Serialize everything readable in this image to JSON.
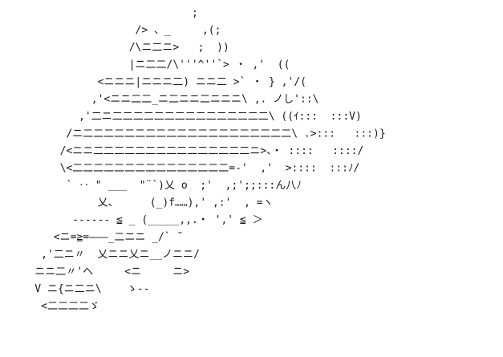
{
  "artwork": {
    "kind": "ascii-art",
    "lines": [
      "                             ;",
      "                    /> 、_     ,(;",
      "                   /\\ニ二ニ>   ;  ))",
      "                   |ニ二二/\\'''^''`> ・ ,'  ((",
      "              <ニニニ|ニニニ二) ニニ二 >` ・ } ,'/(",
      "             ,'<ニニ二二_ニ二ニニ二ニニニ\\ ,. ノし'::\\",
      "           ,'二ニ二二二二二二二二二二二二二二二\\ ((ｲ:::  :::V)",
      "         /ニ二二二二二二二二二二二二二二二二二二二二\\ .>:::   :::)}",
      "        /<ニニ二二二二二二二二二二二二二二二ニ>、・ ::::   ::::/",
      "        \\<二二二二二二二二二二二二二二二=-'  ,'  >::::  :::ﾉ/",
      "         ` ‥ \" ___  \"¨`)乂 o  ;'  ,;';;:::ん八ﾉ",
      "              乂、     (_)f……),' ,:'  , =ヽ",
      "          ------ ≦ _ (_____,,.・ ',' ≦ ＞ ",
      "       <ニ=≧=―――_二ニニ _/` ˜",
      "     ,'二ニ〃  乂ニニ乂ニ__ノニニ/",
      "    ニニ二〃'へ     <ニ     ニ>",
      "    V ニ{ニ二ニ\\    ゝ--",
      "     <二二二二ゞ"
    ]
  }
}
